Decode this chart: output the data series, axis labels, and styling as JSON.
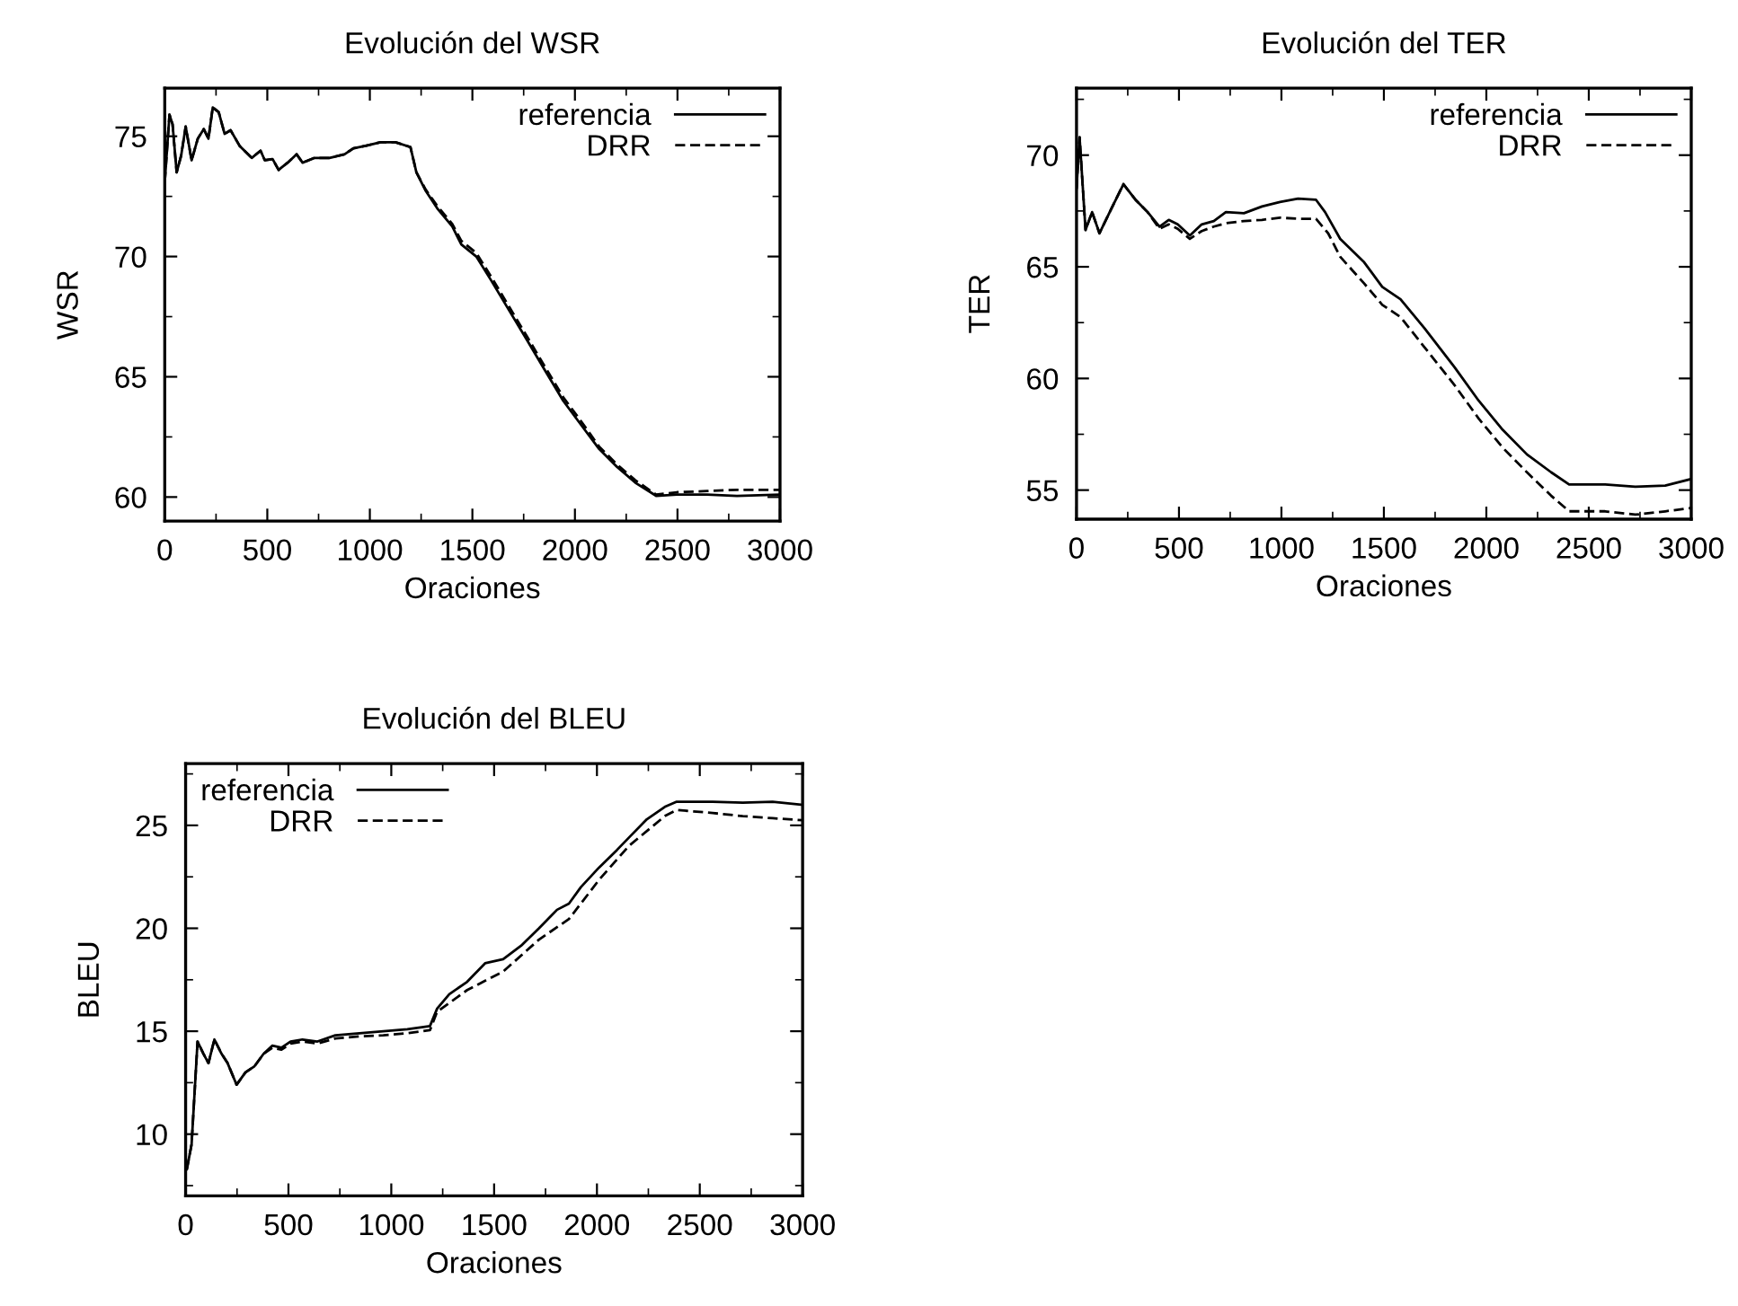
{
  "chart_data": [
    {
      "type": "line",
      "title": "Evolución del WSR",
      "xlabel": "Oraciones",
      "ylabel": "WSR",
      "xlim": [
        0,
        3000
      ],
      "xticks": [
        0,
        500,
        1000,
        1500,
        2000,
        2500,
        3000
      ],
      "ylim": [
        59,
        77
      ],
      "yticks": [
        60,
        65,
        70,
        75
      ],
      "grid": false,
      "legend": "top right",
      "marker": "none",
      "series": [
        {
          "name": "referencia",
          "color": "#000000",
          "line_style": "solid",
          "x": [
            0,
            23,
            38,
            58,
            80,
            102,
            131,
            161,
            190,
            213,
            234,
            263,
            292,
            321,
            365,
            424,
            467,
            488,
            526,
            555,
            599,
            643,
            672,
            730,
            803,
            876,
            920,
            979,
            1052,
            1125,
            1198,
            1227,
            1271,
            1329,
            1402,
            1446,
            1519,
            1592,
            1680,
            1768,
            1855,
            1943,
            2030,
            2118,
            2206,
            2294,
            2396,
            2498,
            2644,
            2790,
            3000
          ],
          "values": [
            73.1,
            75.9,
            75.5,
            73.5,
            74.2,
            75.4,
            74.0,
            74.9,
            75.3,
            74.9,
            76.2,
            76.0,
            75.1,
            75.25,
            74.6,
            74.1,
            74.4,
            74.0,
            74.05,
            73.6,
            73.9,
            74.25,
            73.9,
            74.1,
            74.1,
            74.25,
            74.5,
            74.6,
            74.75,
            74.75,
            74.55,
            73.5,
            72.75,
            72.0,
            71.25,
            70.5,
            70.0,
            69.0,
            67.75,
            66.5,
            65.25,
            64.0,
            63.0,
            62.0,
            61.25,
            60.6,
            60.05,
            60.1,
            60.1,
            60.05,
            60.1
          ]
        },
        {
          "name": "DRR",
          "color": "#000000",
          "line_style": "dashed",
          "x": [
            0,
            23,
            38,
            58,
            80,
            102,
            131,
            161,
            190,
            213,
            234,
            263,
            292,
            321,
            365,
            424,
            467,
            488,
            526,
            555,
            599,
            643,
            672,
            730,
            803,
            876,
            920,
            979,
            1052,
            1125,
            1198,
            1227,
            1271,
            1329,
            1402,
            1446,
            1519,
            1592,
            1680,
            1768,
            1855,
            1943,
            2030,
            2118,
            2206,
            2294,
            2396,
            2498,
            2644,
            2790,
            3000
          ],
          "values": [
            73.1,
            75.9,
            75.5,
            73.5,
            74.2,
            75.4,
            74.0,
            74.9,
            75.3,
            74.9,
            76.2,
            76.0,
            75.1,
            75.25,
            74.6,
            74.1,
            74.4,
            74.0,
            74.05,
            73.6,
            73.9,
            74.25,
            73.9,
            74.1,
            74.1,
            74.25,
            74.5,
            74.6,
            74.75,
            74.75,
            74.55,
            73.5,
            72.8,
            72.1,
            71.35,
            70.65,
            70.15,
            69.15,
            67.9,
            66.65,
            65.4,
            64.15,
            63.15,
            62.1,
            61.35,
            60.7,
            60.1,
            60.2,
            60.25,
            60.3,
            60.3
          ]
        }
      ]
    },
    {
      "type": "line",
      "title": "Evolución del TER",
      "xlabel": "Oraciones",
      "ylabel": "TER",
      "xlim": [
        0,
        3000
      ],
      "xticks": [
        0,
        500,
        1000,
        1500,
        2000,
        2500,
        3000
      ],
      "ylim": [
        53.7,
        73
      ],
      "yticks": [
        55,
        60,
        65,
        70
      ],
      "grid": false,
      "legend": "top right",
      "marker": "none",
      "series": [
        {
          "name": "referencia",
          "color": "#000000",
          "line_style": "solid",
          "x": [
            0,
            15,
            44,
            76,
            112,
            170,
            229,
            288,
            347,
            405,
            450,
            494,
            553,
            611,
            670,
            729,
            817,
            905,
            993,
            1081,
            1169,
            1213,
            1287,
            1404,
            1492,
            1581,
            1698,
            1845,
            1963,
            2080,
            2198,
            2316,
            2404,
            2580,
            2727,
            2873,
            3000
          ],
          "values": [
            68.5,
            70.8,
            66.65,
            67.45,
            66.5,
            67.6,
            68.7,
            68.0,
            67.45,
            66.8,
            67.1,
            66.9,
            66.4,
            66.9,
            67.05,
            67.45,
            67.4,
            67.7,
            67.9,
            68.05,
            68.0,
            67.45,
            66.25,
            65.2,
            64.1,
            63.55,
            62.25,
            60.5,
            59.0,
            57.7,
            56.6,
            55.8,
            55.25,
            55.25,
            55.15,
            55.2,
            55.5
          ]
        },
        {
          "name": "DRR",
          "color": "#000000",
          "line_style": "dashed",
          "x": [
            0,
            15,
            44,
            76,
            112,
            170,
            229,
            288,
            347,
            405,
            450,
            494,
            553,
            611,
            670,
            729,
            817,
            905,
            993,
            1081,
            1169,
            1228,
            1287,
            1404,
            1492,
            1581,
            1698,
            1845,
            1963,
            2080,
            2198,
            2316,
            2404,
            2580,
            2727,
            2873,
            3000
          ],
          "values": [
            68.5,
            70.8,
            66.65,
            67.45,
            66.5,
            67.6,
            68.7,
            68.0,
            67.45,
            66.7,
            66.9,
            66.7,
            66.25,
            66.6,
            66.8,
            66.95,
            67.05,
            67.1,
            67.2,
            67.15,
            67.15,
            66.5,
            65.45,
            64.25,
            63.3,
            62.75,
            61.4,
            59.7,
            58.2,
            56.9,
            55.8,
            54.75,
            54.05,
            54.05,
            53.9,
            54.05,
            54.2
          ]
        }
      ]
    },
    {
      "type": "line",
      "title": "Evolución del BLEU",
      "xlabel": "Oraciones",
      "ylabel": "BLEU",
      "xlim": [
        0,
        3000
      ],
      "xticks": [
        0,
        500,
        1000,
        1500,
        2000,
        2500,
        3000
      ],
      "ylim": [
        7,
        28
      ],
      "yticks": [
        10,
        15,
        20,
        25
      ],
      "grid": false,
      "legend": "top left",
      "marker": "none",
      "series": [
        {
          "name": "referencia",
          "color": "#000000",
          "line_style": "solid",
          "x": [
            6,
            29,
            58,
            87,
            111,
            140,
            175,
            204,
            248,
            291,
            335,
            379,
            422,
            466,
            510,
            568,
            641,
            728,
            845,
            961,
            1078,
            1188,
            1223,
            1282,
            1369,
            1456,
            1544,
            1631,
            1718,
            1806,
            1864,
            1922,
            2010,
            2097,
            2155,
            2243,
            2330,
            2388,
            2563,
            2709,
            2854,
            3000
          ],
          "values": [
            8.3,
            9.5,
            14.5,
            13.9,
            13.45,
            14.6,
            13.9,
            13.45,
            12.4,
            13.0,
            13.3,
            13.9,
            14.3,
            14.2,
            14.5,
            14.6,
            14.5,
            14.8,
            14.9,
            15.0,
            15.1,
            15.25,
            16.1,
            16.8,
            17.4,
            18.3,
            18.5,
            19.15,
            20.0,
            20.9,
            21.2,
            22.0,
            22.95,
            23.8,
            24.4,
            25.3,
            25.9,
            26.15,
            26.15,
            26.1,
            26.15,
            26.0
          ]
        },
        {
          "name": "DRR",
          "color": "#000000",
          "line_style": "dashed",
          "x": [
            6,
            29,
            58,
            87,
            111,
            140,
            175,
            204,
            248,
            291,
            335,
            379,
            422,
            466,
            510,
            568,
            641,
            728,
            845,
            961,
            1078,
            1188,
            1223,
            1369,
            1544,
            1718,
            1864,
            2010,
            2155,
            2330,
            2388,
            2563,
            2709,
            2854,
            3000
          ],
          "values": [
            8.3,
            9.5,
            14.5,
            13.9,
            13.45,
            14.6,
            13.9,
            13.45,
            12.4,
            13.0,
            13.3,
            13.9,
            14.2,
            14.1,
            14.4,
            14.5,
            14.4,
            14.65,
            14.75,
            14.8,
            14.9,
            15.05,
            15.95,
            17.0,
            17.9,
            19.45,
            20.45,
            22.35,
            24.0,
            25.45,
            25.75,
            25.6,
            25.45,
            25.35,
            25.25
          ]
        }
      ]
    }
  ]
}
